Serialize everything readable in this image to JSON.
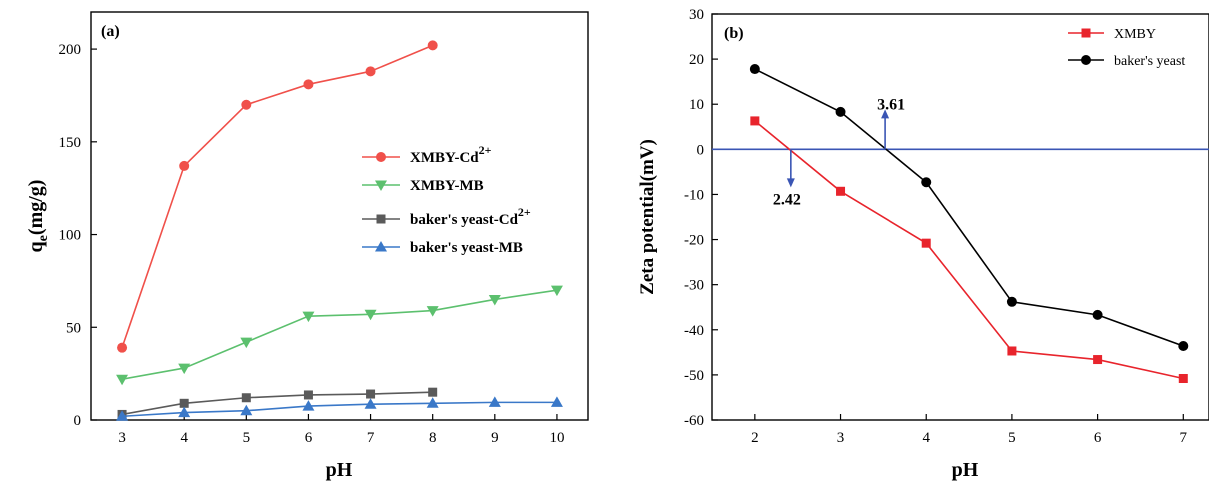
{
  "chart_data": [
    {
      "type": "line",
      "panel_label": "(a)",
      "xlabel": "pH",
      "ylabel_main": "q",
      "ylabel_sub": "e",
      "ylabel_rest": "(mg/g)",
      "xlim": [
        2.5,
        10.5
      ],
      "ylim": [
        0,
        220
      ],
      "xticks": [
        3,
        4,
        5,
        6,
        7,
        8,
        9,
        10
      ],
      "yticks": [
        0,
        50,
        100,
        150,
        200
      ],
      "legend_position": "center-right",
      "series": [
        {
          "name": "XMBY-Cd",
          "name_sup": "2+",
          "color": "#f0504a",
          "marker": "circle",
          "x": [
            3,
            4,
            5,
            6,
            7,
            8
          ],
          "y": [
            39,
            137,
            170,
            181,
            188,
            202
          ]
        },
        {
          "name": "XMBY-MB",
          "name_sup": "",
          "color": "#5cc06e",
          "marker": "triangle-down",
          "x": [
            3,
            4,
            5,
            6,
            7,
            8,
            9,
            10
          ],
          "y": [
            22,
            28,
            42,
            56,
            57,
            59,
            65,
            70
          ]
        },
        {
          "name": "baker's yeast-Cd",
          "name_sup": "2+",
          "color": "#5a5a5a",
          "marker": "square",
          "x": [
            3,
            4,
            5,
            6,
            7,
            8
          ],
          "y": [
            3,
            9,
            12,
            13.5,
            14,
            15
          ]
        },
        {
          "name": "baker's yeast-MB",
          "name_sup": "",
          "color": "#3a78c8",
          "marker": "triangle-up",
          "x": [
            3,
            4,
            5,
            6,
            7,
            8,
            9,
            10
          ],
          "y": [
            2,
            4,
            5,
            7.5,
            8.5,
            9,
            9.5,
            9.5
          ]
        }
      ]
    },
    {
      "type": "line",
      "panel_label": "(b)",
      "xlabel": "pH",
      "ylabel": "Zeta potential(mV)",
      "xlim": [
        1.5,
        7.3
      ],
      "ylim": [
        -60,
        30
      ],
      "xticks": [
        2,
        3,
        4,
        5,
        6,
        7
      ],
      "yticks": [
        30,
        20,
        10,
        0,
        -10,
        -20,
        -30,
        -40,
        -50,
        -60
      ],
      "zero_line_color": "#3a55b4",
      "legend_position": "top-right",
      "series": [
        {
          "name": "XMBY",
          "color": "#e8242c",
          "marker": "square",
          "x": [
            2,
            3,
            4,
            5,
            6,
            7
          ],
          "y": [
            6.3,
            -9.3,
            -20.8,
            -44.7,
            -46.6,
            -50.8
          ]
        },
        {
          "name": "baker's yeast",
          "color": "#000000",
          "marker": "circle",
          "x": [
            2,
            3,
            4,
            5,
            6,
            7
          ],
          "y": [
            17.8,
            8.3,
            -7.3,
            -33.8,
            -36.7,
            -43.6
          ]
        }
      ],
      "annotations": [
        {
          "text": "3.61",
          "x": 3.52,
          "direction": "up"
        },
        {
          "text": "2.42",
          "x": 2.42,
          "direction": "down"
        }
      ]
    }
  ]
}
